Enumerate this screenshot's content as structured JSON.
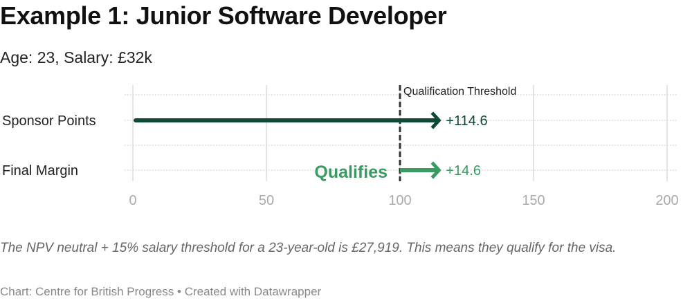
{
  "title": "Example 1: Junior Software Developer",
  "subtitle": "Age: 23, Salary: £32k",
  "note": "The NPV neutral + 15% salary threshold for a 23-year-old is £27,919. This means they qualify for the visa.",
  "source": "Chart: Centre for British Progress • Created with Datawrapper",
  "chart_data": {
    "type": "arrow",
    "categories": [
      "Sponsor Points",
      "Final Margin"
    ],
    "series": [
      {
        "category": "Sponsor Points",
        "start": 0,
        "end": 114.6,
        "label": "+114.6",
        "color": "#0d4a33"
      },
      {
        "category": "Final Margin",
        "start": 100,
        "end": 114.6,
        "label": "+14.6",
        "color": "#3a9a62"
      }
    ],
    "xlim": [
      0,
      200
    ],
    "xticks": [
      "0",
      "50",
      "100",
      "150",
      "200"
    ],
    "grid": true,
    "reference_line": {
      "value": 100,
      "label": "Qualification Threshold",
      "color": "#333333"
    },
    "annotation": {
      "text": "Qualifies",
      "color": "#3a9a62"
    }
  }
}
